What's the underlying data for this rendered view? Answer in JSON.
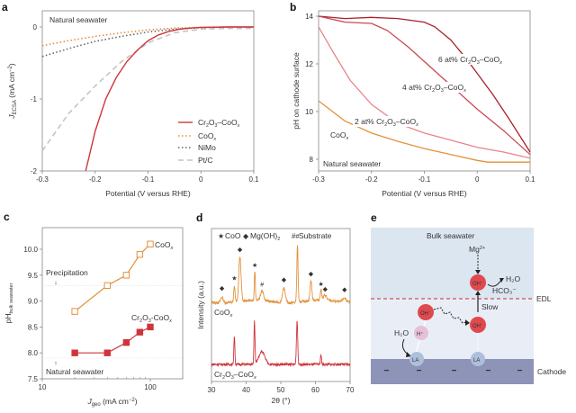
{
  "colors": {
    "red": "#d0343b",
    "dark_red": "#a9212c",
    "mid_red": "#c94855",
    "pink": "#e8848a",
    "orange": "#e3913a",
    "gray": "#8a8a8a",
    "light_gray": "#c4c4c4",
    "navy": "#4a5a9c",
    "seawater_bg": "#dce6f0",
    "edl_bg": "#e8eef5",
    "cathode": "#8e93b8",
    "la_circle": "#aebfdc",
    "h_circle": "#e8bfd8"
  },
  "chart_data": [
    {
      "panel": "a",
      "type": "line",
      "annotation": "Natural seawater",
      "xlabel": "Potential (V versus RHE)",
      "ylabel": "J_ECSA (mA cm^-2)",
      "xlim": [
        -0.3,
        0.1
      ],
      "ylim": [
        -2,
        0.25
      ],
      "xticks": [
        "-0.3",
        "-0.2",
        "-0.1",
        "0",
        "0.1"
      ],
      "yticks": [
        "0",
        "-1",
        "-2"
      ],
      "legend_position": "bottom-right",
      "series": [
        {
          "name": "Cr2O3-CoOx",
          "style": "solid",
          "x": [
            -0.218,
            -0.2,
            -0.18,
            -0.16,
            -0.14,
            -0.12,
            -0.1,
            -0.08,
            -0.06,
            -0.04,
            -0.02,
            0,
            0.05,
            0.1
          ],
          "y": [
            -2.0,
            -1.45,
            -1.0,
            -0.7,
            -0.48,
            -0.32,
            -0.19,
            -0.11,
            -0.06,
            -0.03,
            -0.015,
            -0.005,
            0,
            0
          ]
        },
        {
          "name": "CoOx",
          "style": "dotted",
          "x": [
            -0.3,
            -0.25,
            -0.2,
            -0.15,
            -0.1,
            -0.05,
            0,
            0.05,
            0.1
          ],
          "y": [
            -0.26,
            -0.19,
            -0.13,
            -0.08,
            -0.04,
            -0.015,
            -0.005,
            0,
            0
          ]
        },
        {
          "name": "NiMo",
          "style": "dotted",
          "x": [
            -0.3,
            -0.25,
            -0.2,
            -0.15,
            -0.1,
            -0.05,
            0,
            0.05,
            0.1
          ],
          "y": [
            -0.41,
            -0.3,
            -0.2,
            -0.13,
            -0.07,
            -0.03,
            -0.01,
            0,
            0
          ]
        },
        {
          "name": "Pt/C",
          "style": "dashed",
          "x": [
            -0.3,
            -0.25,
            -0.2,
            -0.15,
            -0.1,
            -0.05,
            0,
            0.05,
            0.1
          ],
          "y": [
            -1.72,
            -1.2,
            -0.82,
            -0.48,
            -0.22,
            -0.08,
            -0.03,
            -0.02,
            -0.02
          ]
        }
      ],
      "legend": [
        "Cr2O3–CoOx",
        "CoOx",
        "NiMo",
        "Pt/C"
      ]
    },
    {
      "panel": "b",
      "type": "line",
      "annotation": "Natural seawater",
      "xlabel": "Potential (V versus RHE)",
      "ylabel": "pH on cathode surface",
      "xlim": [
        -0.3,
        0.1
      ],
      "ylim": [
        7.6,
        14.15
      ],
      "xticks": [
        "-0.3",
        "-0.2",
        "-0.1",
        "0",
        "0.1"
      ],
      "yticks": [
        "8",
        "10",
        "12",
        "14"
      ],
      "series": [
        {
          "name": "6 at% Cr2O3–CoOx",
          "x": [
            -0.3,
            -0.25,
            -0.2,
            -0.15,
            -0.1,
            -0.08,
            -0.05,
            -0.02,
            0,
            0.03,
            0.06,
            0.1
          ],
          "y": [
            14.0,
            13.9,
            13.95,
            13.9,
            13.75,
            13.55,
            13.0,
            12.2,
            11.6,
            10.7,
            9.7,
            8.3
          ]
        },
        {
          "name": "4 at% Cr2O3–CoOx",
          "x": [
            -0.3,
            -0.25,
            -0.2,
            -0.17,
            -0.13,
            -0.1,
            -0.05,
            0,
            0.05,
            0.1
          ],
          "y": [
            14.0,
            13.75,
            13.7,
            13.4,
            12.7,
            12.1,
            11.1,
            10.1,
            9.2,
            8.2
          ]
        },
        {
          "name": "2 at% Cr2O3–CoOx",
          "x": [
            -0.3,
            -0.27,
            -0.24,
            -0.2,
            -0.15,
            -0.1,
            -0.05,
            0,
            0.05,
            0.1
          ],
          "y": [
            13.55,
            12.4,
            11.3,
            10.3,
            9.5,
            9.1,
            8.8,
            8.5,
            8.3,
            8.05
          ]
        },
        {
          "name": "CoOx",
          "x": [
            -0.3,
            -0.25,
            -0.2,
            -0.15,
            -0.1,
            -0.05,
            0,
            0.02,
            0.05,
            0.1
          ],
          "y": [
            10.45,
            9.6,
            9.1,
            8.75,
            8.45,
            8.2,
            7.95,
            7.88,
            7.88,
            7.88
          ]
        }
      ],
      "labels": [
        "6 at% Cr2O3–CoOx",
        "4 at% Cr2O3–CoOx",
        "2 at% Cr2O3–CoOx",
        "CoOx"
      ]
    },
    {
      "panel": "c",
      "type": "line",
      "xscale": "log",
      "xlabel": "J_geo (mA cm^-2)",
      "ylabel": "pH_bulk seawater",
      "xlim": [
        10,
        200
      ],
      "ylim": [
        7.5,
        10.4
      ],
      "xticks": [
        "10",
        "100"
      ],
      "yticks": [
        "7.5",
        "8.0",
        "8.5",
        "9.0",
        "9.5",
        "10.0"
      ],
      "reference_lines": [
        {
          "label": "Precipitation",
          "y": 9.3
        },
        {
          "label": "Natural seawater",
          "y": 7.9
        }
      ],
      "series": [
        {
          "name": "CoOx",
          "marker": "open-square",
          "x": [
            20,
            40,
            60,
            80,
            100
          ],
          "y": [
            8.8,
            9.3,
            9.5,
            9.9,
            10.1
          ]
        },
        {
          "name": "Cr2O3-CoOx",
          "marker": "filled-square",
          "x": [
            20,
            40,
            60,
            80,
            100
          ],
          "y": [
            8.0,
            8.0,
            8.2,
            8.4,
            8.5
          ]
        }
      ]
    },
    {
      "panel": "d",
      "type": "line",
      "xlabel": "2θ (°)",
      "ylabel": "Intensity (a.u.)",
      "xlim": [
        30,
        70
      ],
      "xticks": [
        "30",
        "40",
        "50",
        "60",
        "70"
      ],
      "legend": [
        {
          "symbol": "★",
          "label": "CoO",
          "color_key": "red"
        },
        {
          "symbol": "◆",
          "label": "Mg(OH)2",
          "color_key": "navy"
        },
        {
          "symbol": "#",
          "label": "Substrate",
          "color_key": "orange"
        }
      ],
      "series": [
        {
          "name": "CoOx",
          "peaks": [
            {
              "x": 33.0,
              "h": 0.08,
              "w": 0.5,
              "marker": "mgoh"
            },
            {
              "x": 36.6,
              "h": 0.22,
              "w": 0.25,
              "marker": "coo"
            },
            {
              "x": 38.2,
              "h": 0.62,
              "w": 0.45,
              "marker": "mgoh"
            },
            {
              "x": 42.5,
              "h": 0.4,
              "w": 0.2,
              "marker": "coo"
            },
            {
              "x": 44.6,
              "h": 0.13,
              "w": 0.6,
              "marker": "sub"
            },
            {
              "x": 50.9,
              "h": 0.2,
              "w": 0.6,
              "marker": "mgoh"
            },
            {
              "x": 54.8,
              "h": 0.8,
              "w": 0.25,
              "marker": "sub"
            },
            {
              "x": 58.7,
              "h": 0.28,
              "w": 0.35,
              "marker": "mgoh"
            },
            {
              "x": 61.6,
              "h": 0.14,
              "w": 0.3,
              "marker": "coo"
            },
            {
              "x": 62.8,
              "h": 0.07,
              "w": 0.6,
              "marker": "mgoh"
            },
            {
              "x": 68.4,
              "h": 0.06,
              "w": 0.8,
              "marker": "mgoh"
            }
          ]
        },
        {
          "name": "Cr2O3–CoOx",
          "peaks": [
            {
              "x": 36.6,
              "h": 0.4,
              "w": 0.2
            },
            {
              "x": 42.4,
              "h": 0.6,
              "w": 0.2
            },
            {
              "x": 44.5,
              "h": 0.18,
              "w": 1.2
            },
            {
              "x": 54.7,
              "h": 0.62,
              "w": 0.25
            },
            {
              "x": 61.6,
              "h": 0.14,
              "w": 0.2
            }
          ]
        }
      ],
      "trace_labels": [
        "CoOx",
        "Cr2O3–CoOx"
      ]
    }
  ],
  "panels": {
    "a": "a",
    "b": "b",
    "c": "c",
    "d": "d",
    "e": "e"
  },
  "diagram_e": {
    "bulk": "Bulk seawater",
    "mg": "Mg",
    "mg_sup": "2+",
    "oh": "OH",
    "oh_sup": "−",
    "h2o_top": "H₂O",
    "hco3": "HCO₃⁻",
    "edl": "EDL",
    "slow": "Slow",
    "h2o_left": "H₂O",
    "h_plus": "H⁺",
    "la": "LA",
    "cathode": "Cathode",
    "minus": "−"
  }
}
